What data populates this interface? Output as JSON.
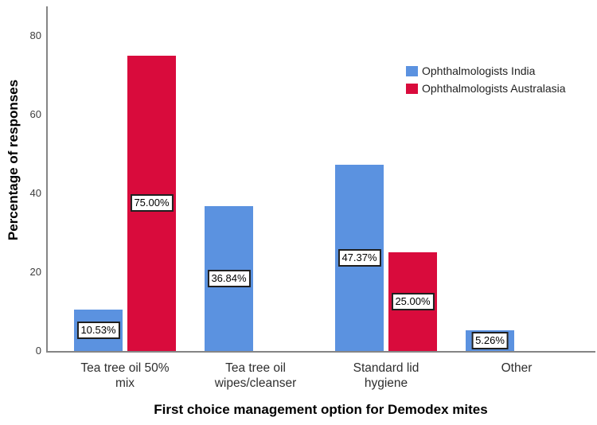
{
  "figure": {
    "background": "#ffffff",
    "axis_color": "#858585"
  },
  "chart_data": {
    "type": "bar",
    "title": "",
    "xlabel": "First choice management option for Demodex mites",
    "ylabel": "Percentage of responses",
    "ylim": [
      0,
      80
    ],
    "yticks": [
      0,
      20,
      40,
      60,
      80
    ],
    "grid": false,
    "legend_position": "top-right",
    "categories": [
      "Tea tree oil 50% mix",
      "Tea tree oil wipes/cleanser",
      "Standard lid hygiene",
      "Other"
    ],
    "category_label_lines": [
      [
        "Tea tree oil 50%",
        "mix"
      ],
      [
        "Tea tree oil",
        "wipes/cleanser"
      ],
      [
        "Standard lid",
        "hygiene"
      ],
      [
        "Other"
      ]
    ],
    "series": [
      {
        "name": "Ophthalmologists India",
        "color": "#5B92E0",
        "values": [
          10.53,
          36.84,
          47.37,
          5.26
        ],
        "data_labels": [
          "10.53%",
          "36.84%",
          "47.37%",
          "5.26%"
        ]
      },
      {
        "name": "Ophthalmologists Australasia",
        "color": "#D90B3C",
        "values": [
          75.0,
          null,
          25.0,
          null
        ],
        "data_labels": [
          "75.00%",
          null,
          "25.00%",
          null
        ]
      }
    ]
  }
}
